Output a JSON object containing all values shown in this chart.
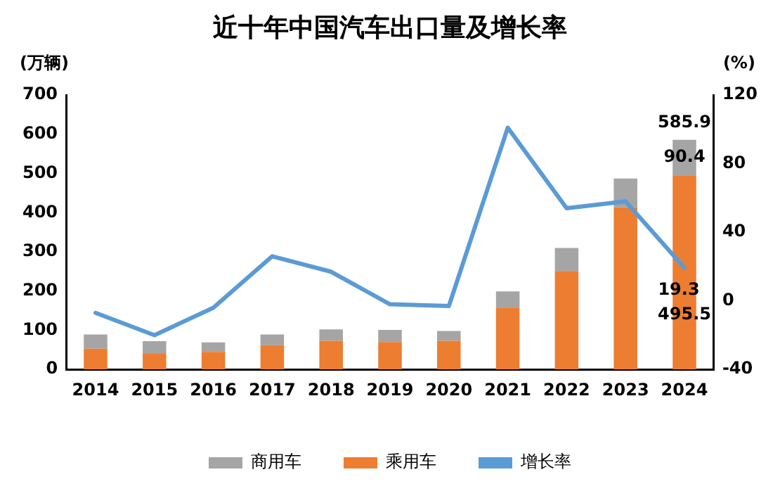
{
  "chart_data": {
    "type": "bar",
    "title": "近十年中国汽车出口量及增长率",
    "ylabel": "(万辆)",
    "y2label": "(%)",
    "categories": [
      "2014",
      "2015",
      "2016",
      "2017",
      "2018",
      "2019",
      "2020",
      "2021",
      "2022",
      "2023",
      "2024"
    ],
    "stacked": true,
    "series": [
      {
        "name": "乘用车",
        "color": "#ed7d31",
        "values": [
          53,
          40,
          45,
          62,
          73,
          70,
          73,
          158,
          251,
          414,
          495.5
        ],
        "value_labels": [
          null,
          null,
          null,
          null,
          null,
          null,
          null,
          null,
          null,
          null,
          "495.5"
        ]
      },
      {
        "name": "商用车",
        "color": "#a5a5a5",
        "values": [
          36,
          32,
          24,
          27,
          29,
          31,
          25,
          41,
          59,
          73,
          90.4
        ],
        "value_labels": [
          null,
          null,
          null,
          null,
          null,
          null,
          null,
          null,
          null,
          null,
          "90.4"
        ]
      },
      {
        "name": "增长率",
        "type": "line",
        "axis": "y2",
        "color": "#5b9bd5",
        "values": [
          -7,
          -20,
          -4,
          26,
          17,
          -2,
          -3,
          101,
          54,
          58,
          19.3
        ],
        "value_labels": [
          null,
          null,
          null,
          null,
          null,
          null,
          null,
          null,
          null,
          null,
          "19.3"
        ]
      }
    ],
    "totals": [
      null,
      null,
      null,
      null,
      null,
      null,
      null,
      null,
      null,
      null,
      "585.9"
    ],
    "ylim": [
      0,
      700
    ],
    "yticks": [
      0,
      100,
      200,
      300,
      400,
      500,
      600,
      700
    ],
    "y2lim": [
      -40,
      120
    ],
    "y2ticks": [
      -40,
      0,
      40,
      80,
      120
    ],
    "grid": false,
    "legend": "bottom",
    "marker": "none",
    "line_style": "solid"
  }
}
